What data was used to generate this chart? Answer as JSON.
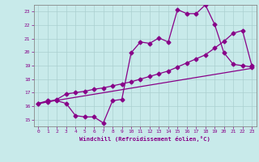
{
  "xlabel": "Windchill (Refroidissement éolien,°C)",
  "background_color": "#c8eaea",
  "line_color": "#880088",
  "xlim": [
    -0.5,
    23.5
  ],
  "ylim": [
    14.5,
    23.5
  ],
  "xticks": [
    0,
    1,
    2,
    3,
    4,
    5,
    6,
    7,
    8,
    9,
    10,
    11,
    12,
    13,
    14,
    15,
    16,
    17,
    18,
    19,
    20,
    21,
    22,
    23
  ],
  "yticks": [
    15,
    16,
    17,
    18,
    19,
    20,
    21,
    22,
    23
  ],
  "line1_x": [
    0,
    1,
    2,
    3,
    4,
    5,
    6,
    7,
    8,
    9,
    10,
    11,
    12,
    13,
    14,
    15,
    16,
    17,
    18,
    19,
    20,
    21,
    22,
    23
  ],
  "line1_y": [
    16.2,
    16.4,
    16.4,
    16.2,
    15.3,
    15.2,
    15.2,
    14.75,
    16.4,
    16.5,
    19.95,
    20.75,
    20.65,
    21.05,
    20.75,
    23.15,
    22.85,
    22.85,
    23.5,
    22.05,
    19.95,
    19.1,
    19.0,
    18.9
  ],
  "line2_x": [
    0,
    1,
    2,
    3,
    4,
    5,
    6,
    7,
    8,
    9,
    10,
    11,
    12,
    13,
    14,
    15,
    16,
    17,
    18,
    19,
    20,
    21,
    22,
    23
  ],
  "line2_y": [
    16.2,
    16.3,
    16.5,
    16.9,
    17.0,
    17.1,
    17.25,
    17.35,
    17.5,
    17.65,
    17.8,
    18.0,
    18.2,
    18.4,
    18.6,
    18.9,
    19.2,
    19.5,
    19.8,
    20.3,
    20.8,
    21.4,
    21.6,
    19.0
  ],
  "line3_x": [
    0,
    23
  ],
  "line3_y": [
    16.2,
    18.8
  ]
}
